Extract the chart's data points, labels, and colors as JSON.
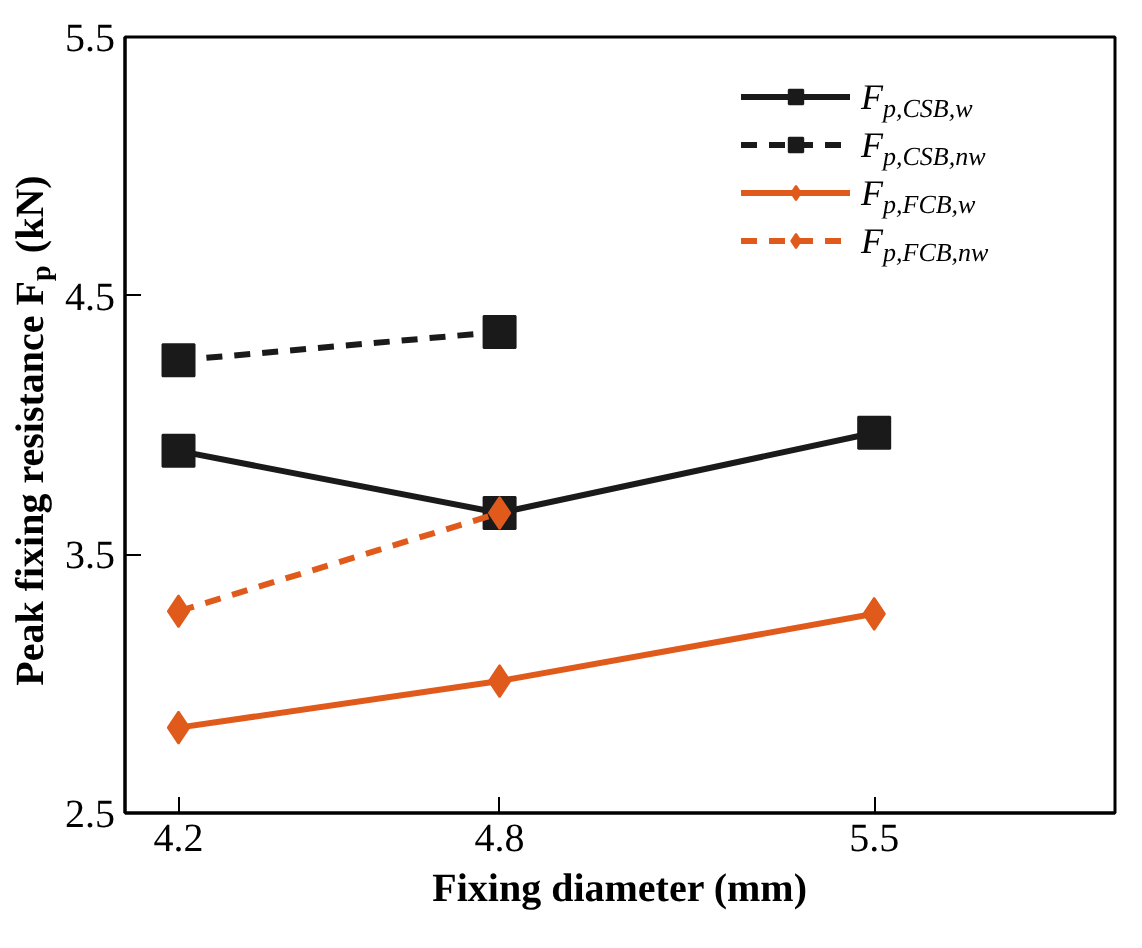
{
  "chart_data": {
    "type": "line",
    "xlabel": "Fixing diameter (mm)",
    "ylabel": "Peak fixing resistance F$_{p}$ (kN)",
    "x": [
      4.2,
      4.8,
      5.5
    ],
    "xlim": [
      4.1,
      5.95
    ],
    "xticks": [
      4.2,
      4.8,
      5.5
    ],
    "ylim": [
      2.5,
      5.5
    ],
    "yticks": [
      2.5,
      3.5,
      4.5,
      5.5
    ],
    "grid": false,
    "legend": "top right",
    "series": [
      {
        "name": "F$_{p,CSB,w}$",
        "color": "#1a1a1a",
        "marker": "square",
        "line_style": "solid",
        "values": [
          3.9,
          3.66,
          3.97
        ]
      },
      {
        "name": "F$_{p,CSB,nw}$",
        "color": "#1a1a1a",
        "marker": "square",
        "line_style": "dashed",
        "values": [
          4.25,
          4.36,
          null
        ]
      },
      {
        "name": "F$_{p,FCB,w}$",
        "color": "#e05a1c",
        "marker": "diamond",
        "line_style": "solid",
        "values": [
          2.83,
          3.01,
          3.27
        ]
      },
      {
        "name": "F$_{p,FCB,nw}$",
        "color": "#e05a1c",
        "marker": "diamond",
        "line_style": "dashed",
        "values": [
          3.28,
          3.66,
          null
        ]
      }
    ]
  }
}
